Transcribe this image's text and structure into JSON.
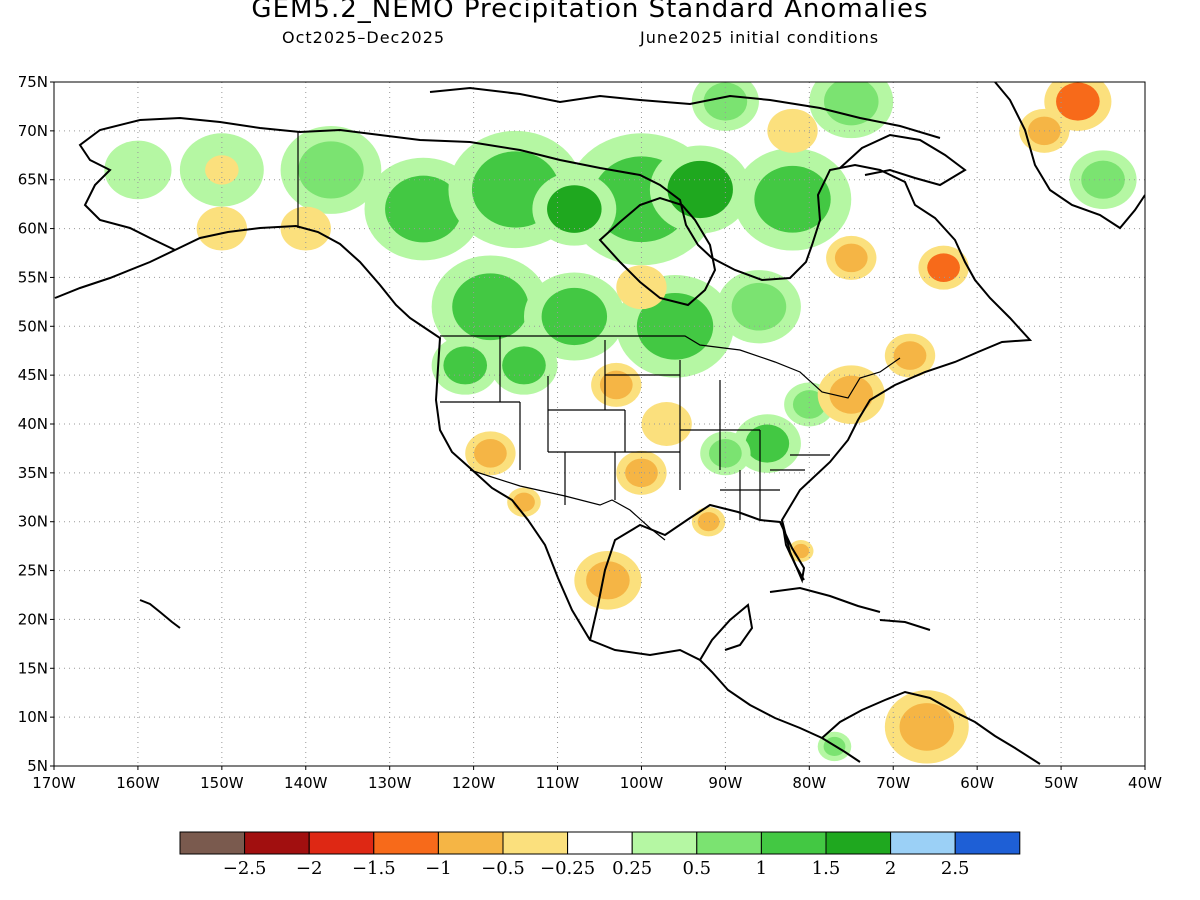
{
  "title": "GEM5.2_NEMO Precipitation Standard Anomalies",
  "period": "Oct2025–Dec2025",
  "init": "June2025 initial conditions",
  "map": {
    "lon_range": [
      -170,
      -40
    ],
    "lat_range": [
      5,
      75
    ],
    "grid": true,
    "lat_ticks": [
      "5N",
      "10N",
      "15N",
      "20N",
      "25N",
      "30N",
      "35N",
      "40N",
      "45N",
      "50N",
      "55N",
      "60N",
      "65N",
      "70N",
      "75N"
    ],
    "lon_ticks": [
      "170W",
      "160W",
      "150W",
      "140W",
      "130W",
      "120W",
      "110W",
      "100W",
      "90W",
      "80W",
      "70W",
      "60W",
      "50W",
      "40W"
    ]
  },
  "colorbar": {
    "colors": [
      "#7a5a4e",
      "#a10f0f",
      "#de2814",
      "#f76a1a",
      "#f5b545",
      "#fbe07d",
      "#ffffff",
      "#b5f7a3",
      "#7be371",
      "#43c843",
      "#1fa81f",
      "#9bd0f6",
      "#1e5fd6"
    ],
    "labels": [
      "-2.5",
      "-2",
      "-1.5",
      "-1",
      "-0.5",
      "-0.25",
      "0.25",
      "0.5",
      "1",
      "1.5",
      "2",
      "2.5"
    ]
  },
  "anomalies": [
    {
      "lon": -126,
      "lat": 62,
      "r": 7,
      "value": 1.2
    },
    {
      "lon": -115,
      "lat": 64,
      "r": 8,
      "value": 1.1
    },
    {
      "lon": -100,
      "lat": 63,
      "r": 9,
      "value": 1.3
    },
    {
      "lon": -93,
      "lat": 64,
      "r": 6,
      "value": 1.6
    },
    {
      "lon": -108,
      "lat": 62,
      "r": 5,
      "value": 1.6
    },
    {
      "lon": -82,
      "lat": 63,
      "r": 7,
      "value": 1.0
    },
    {
      "lon": -137,
      "lat": 66,
      "r": 6,
      "value": 0.9
    },
    {
      "lon": -150,
      "lat": 66,
      "r": 5,
      "value": 0.4
    },
    {
      "lon": -160,
      "lat": 66,
      "r": 4,
      "value": 0.4
    },
    {
      "lon": -118,
      "lat": 52,
      "r": 7,
      "value": 1.2
    },
    {
      "lon": -108,
      "lat": 51,
      "r": 6,
      "value": 1.0
    },
    {
      "lon": -96,
      "lat": 50,
      "r": 7,
      "value": 1.0
    },
    {
      "lon": -86,
      "lat": 52,
      "r": 5,
      "value": 0.6
    },
    {
      "lon": -121,
      "lat": 46,
      "r": 4,
      "value": 1.3
    },
    {
      "lon": -114,
      "lat": 46,
      "r": 4,
      "value": 1.1
    },
    {
      "lon": -85,
      "lat": 38,
      "r": 4,
      "value": 1.2
    },
    {
      "lon": -90,
      "lat": 37,
      "r": 3,
      "value": 0.8
    },
    {
      "lon": -80,
      "lat": 42,
      "r": 3,
      "value": 0.6
    },
    {
      "lon": -75,
      "lat": 73,
      "r": 5,
      "value": 0.8
    },
    {
      "lon": -90,
      "lat": 73,
      "r": 4,
      "value": 0.6
    },
    {
      "lon": -45,
      "lat": 65,
      "r": 4,
      "value": 0.6
    },
    {
      "lon": -77,
      "lat": 7,
      "r": 2,
      "value": 0.6
    },
    {
      "lon": -150,
      "lat": 60,
      "r": 3,
      "value": -0.5
    },
    {
      "lon": -140,
      "lat": 60,
      "r": 3,
      "value": -0.5
    },
    {
      "lon": -150,
      "lat": 66,
      "r": 2,
      "value": -0.3
    },
    {
      "lon": -103,
      "lat": 44,
      "r": 3,
      "value": -0.8
    },
    {
      "lon": -97,
      "lat": 40,
      "r": 3,
      "value": -0.5
    },
    {
      "lon": -100,
      "lat": 35,
      "r": 3,
      "value": -1.0
    },
    {
      "lon": -118,
      "lat": 37,
      "r": 3,
      "value": -0.9
    },
    {
      "lon": -114,
      "lat": 32,
      "r": 2,
      "value": -0.8
    },
    {
      "lon": -104,
      "lat": 24,
      "r": 4,
      "value": -0.9
    },
    {
      "lon": -92,
      "lat": 30,
      "r": 2,
      "value": -0.6
    },
    {
      "lon": -75,
      "lat": 43,
      "r": 4,
      "value": -0.8
    },
    {
      "lon": -68,
      "lat": 47,
      "r": 3,
      "value": -0.6
    },
    {
      "lon": -75,
      "lat": 57,
      "r": 3,
      "value": -0.6
    },
    {
      "lon": -64,
      "lat": 56,
      "r": 3,
      "value": -1.2
    },
    {
      "lon": -100,
      "lat": 54,
      "r": 3,
      "value": -0.5
    },
    {
      "lon": -82,
      "lat": 70,
      "r": 3,
      "value": -0.4
    },
    {
      "lon": -66,
      "lat": 9,
      "r": 5,
      "value": -0.7
    },
    {
      "lon": -48,
      "lat": 73,
      "r": 4,
      "value": -1.4
    },
    {
      "lon": -52,
      "lat": 70,
      "r": 3,
      "value": -0.7
    },
    {
      "lon": -81,
      "lat": 27,
      "r": 1.5,
      "value": -0.8
    }
  ]
}
